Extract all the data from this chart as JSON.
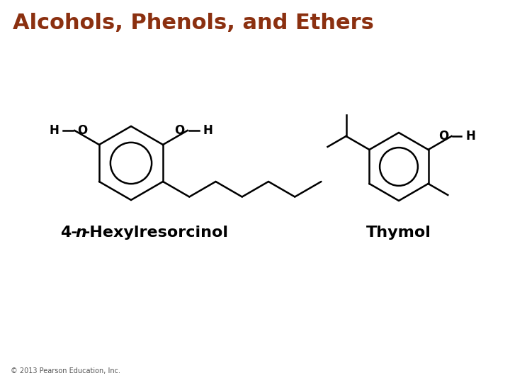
{
  "title": "Alcohols, Phenols, and Ethers",
  "title_color": "#8B3010",
  "title_fontsize": 22,
  "title_fontstyle": "bold",
  "bg_color": "#FFFFFF",
  "label2": "Thymol",
  "label_fontsize": 16,
  "label_fontweight": "bold",
  "copyright": "© 2013 Pearson Education, Inc.",
  "copyright_fontsize": 7,
  "line_color": "#000000",
  "line_width": 1.8
}
